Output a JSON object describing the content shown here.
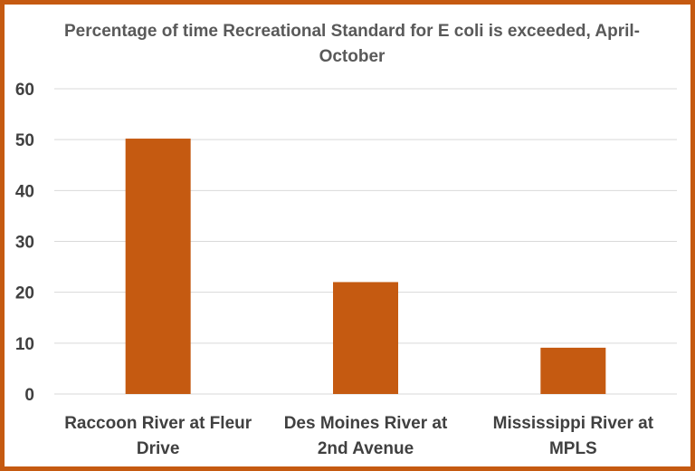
{
  "chart_data": {
    "type": "bar",
    "title": "Percentage of time Recreational Standard for E coli is exceeded, April-October",
    "categories": [
      [
        "Raccoon River at Fleur",
        "Drive"
      ],
      [
        "Des Moines River at",
        "2nd Avenue"
      ],
      [
        "Mississippi River at",
        "MPLS"
      ]
    ],
    "values": [
      50.2,
      22,
      9.1
    ],
    "ylim": [
      0,
      60
    ],
    "yticks": [
      0,
      10,
      20,
      30,
      40,
      50,
      60
    ],
    "grid": true,
    "legend": "none",
    "xlabel": "",
    "ylabel": "",
    "colors": {
      "bar": "#c55a11",
      "border": "#c55a11",
      "grid": "#d9d9d9",
      "text": "#404040",
      "title": "#595959"
    }
  }
}
